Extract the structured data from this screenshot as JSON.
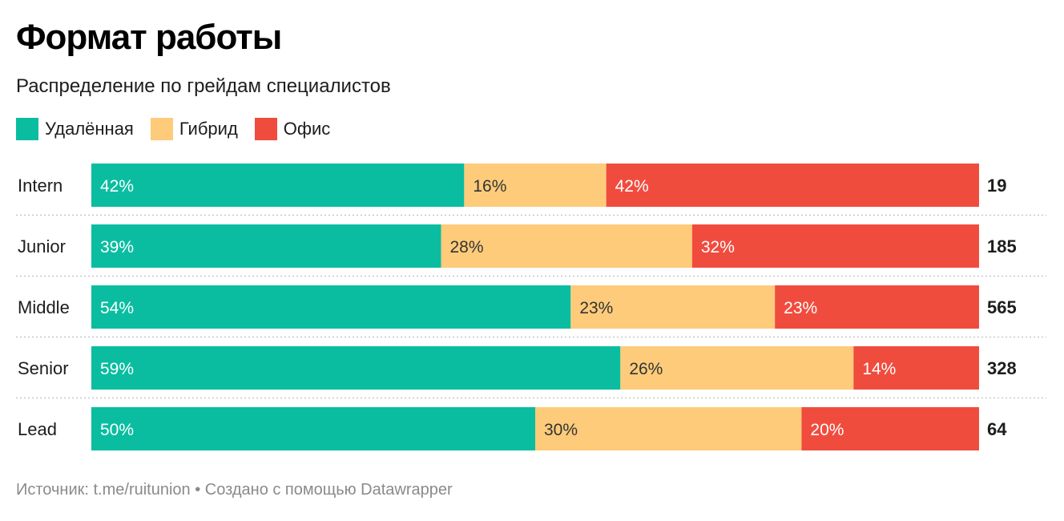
{
  "header": {
    "title": "Формат работы",
    "subtitle": "Распределение по грейдам специалистов"
  },
  "legend": [
    {
      "label": "Удалённая",
      "color": "#0abda0"
    },
    {
      "label": "Гибрид",
      "color": "#fdcb7a"
    },
    {
      "label": "Офис",
      "color": "#f04c3e"
    }
  ],
  "chart_data": {
    "type": "bar",
    "orientation": "horizontal",
    "stacked": true,
    "normalized": true,
    "categories": [
      "Intern",
      "Junior",
      "Middle",
      "Senior",
      "Lead"
    ],
    "series": [
      {
        "name": "Удалённая",
        "color": "#0abda0",
        "values": [
          42,
          39,
          54,
          59,
          50
        ],
        "labels": [
          "42%",
          "39%",
          "54%",
          "59%",
          "50%"
        ],
        "label_color": "#ffffff"
      },
      {
        "name": "Гибрид",
        "color": "#fdcb7a",
        "values": [
          16,
          28,
          23,
          26,
          30
        ],
        "labels": [
          "16%",
          "28%",
          "23%",
          "26%",
          "30%"
        ],
        "label_color": "#333333"
      },
      {
        "name": "Офис",
        "color": "#f04c3e",
        "values": [
          42,
          32,
          23,
          14,
          20
        ],
        "labels": [
          "42%",
          "32%",
          "23%",
          "14%",
          "20%"
        ],
        "label_color": "#ffffff"
      }
    ],
    "totals": [
      "19",
      "185",
      "565",
      "328",
      "64"
    ],
    "xlim": [
      0,
      100
    ],
    "grid": false,
    "row_separators": "dotted",
    "legend_position": "top-left"
  },
  "footer": {
    "source": "Источник: t.me/ruitunion • Создано с помощью Datawrapper"
  }
}
